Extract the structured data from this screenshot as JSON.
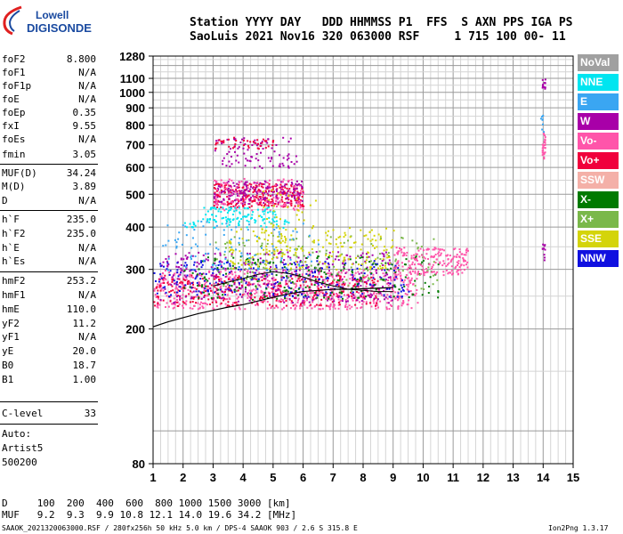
{
  "logo": {
    "brand_top": "Lowell",
    "brand_bottom": "DIGISONDE"
  },
  "header": {
    "row1": "Station YYYY DAY   DDD HHMMSS P1  FFS  S AXN PPS IGA PS",
    "row2": "SaoLuis 2021 Nov16 320 063000 RSF     1 715 100 00- 11"
  },
  "params": [
    {
      "k": "foF2",
      "v": "8.800"
    },
    {
      "k": "foF1",
      "v": "N/A"
    },
    {
      "k": "foF1p",
      "v": "N/A"
    },
    {
      "k": "foE",
      "v": "N/A"
    },
    {
      "k": "foEp",
      "v": "0.35"
    },
    {
      "k": "fxI",
      "v": "9.55"
    },
    {
      "k": "foEs",
      "v": "N/A"
    },
    {
      "k": "fmin",
      "v": "3.05"
    },
    {
      "k": "MUF(D)",
      "v": "34.24"
    },
    {
      "k": "M(D)",
      "v": "3.89"
    },
    {
      "k": "D",
      "v": "N/A"
    },
    {
      "k": "h`F",
      "v": "235.0"
    },
    {
      "k": "h`F2",
      "v": "235.0"
    },
    {
      "k": "h`E",
      "v": "N/A"
    },
    {
      "k": "h`Es",
      "v": "N/A"
    },
    {
      "k": "hmF2",
      "v": "253.2"
    },
    {
      "k": "hmF1",
      "v": "N/A"
    },
    {
      "k": "hmE",
      "v": "110.0"
    },
    {
      "k": "yF2",
      "v": "11.2"
    },
    {
      "k": "yF1",
      "v": "N/A"
    },
    {
      "k": "yE",
      "v": "20.0"
    },
    {
      "k": "B0",
      "v": "18.7"
    },
    {
      "k": "B1",
      "v": "1.00"
    }
  ],
  "clevel": {
    "k": "C-level",
    "v": "33"
  },
  "autoscale": {
    "line1": "Auto:",
    "line2": "Artist5",
    "line3": "500200"
  },
  "legend": [
    {
      "label": "NoVal",
      "color": "#a0a0a0"
    },
    {
      "label": "NNE",
      "color": "#00e5f0"
    },
    {
      "label": "E",
      "color": "#3aa6f2"
    },
    {
      "label": "W",
      "color": "#a800a8"
    },
    {
      "label": "Vo-",
      "color": "#ff55aa"
    },
    {
      "label": "Vo+",
      "color": "#f0003c"
    },
    {
      "label": "SSW",
      "color": "#f4b0a8"
    },
    {
      "label": "X-",
      "color": "#007a00"
    },
    {
      "label": "X+",
      "color": "#7ab84a"
    },
    {
      "label": "SSE",
      "color": "#d4d40a"
    },
    {
      "label": "NNW",
      "color": "#1010e0"
    }
  ],
  "chart_data": {
    "type": "scatter",
    "title": "",
    "xlabel": "",
    "ylabel": "",
    "xlim": [
      1,
      15
    ],
    "ylim": [
      80,
      1280
    ],
    "yscale": "log",
    "x_ticks": [
      "1",
      "2",
      "3",
      "4",
      "5",
      "6",
      "7",
      "8",
      "9",
      "10",
      "11",
      "12",
      "13",
      "14",
      "15"
    ],
    "y_ticks": [
      "80",
      "200",
      "300",
      "400",
      "500",
      "600",
      "700",
      "800",
      "900",
      "1000",
      "1100",
      "1280"
    ],
    "y_tick_values": [
      80,
      200,
      300,
      400,
      500,
      600,
      700,
      800,
      900,
      1000,
      1100,
      1280
    ],
    "grid": true,
    "profile_line": {
      "x": [
        1.0,
        1.5,
        2.0,
        2.5,
        3.0,
        3.5,
        4.0,
        4.5,
        5.0,
        5.5,
        6.0,
        6.5,
        7.0,
        7.5,
        8.0,
        8.5,
        9.0
      ],
      "y": [
        203,
        210,
        216,
        222,
        227,
        232,
        236,
        242,
        248,
        254,
        258,
        260,
        262,
        262,
        263,
        264,
        265
      ]
    },
    "trace_line": {
      "x": [
        3.0,
        3.5,
        4.0,
        4.5,
        5.0,
        5.5,
        6.0,
        6.5,
        7.0,
        7.5,
        8.0,
        8.5,
        9.0
      ],
      "y": [
        268,
        275,
        282,
        290,
        295,
        292,
        285,
        275,
        268,
        262,
        260,
        258,
        258
      ]
    },
    "clusters": [
      {
        "series": "Vo-",
        "x": [
          1.0,
          9.8
        ],
        "y": [
          230,
          300
        ],
        "n": 700
      },
      {
        "series": "Vo+",
        "x": [
          1.0,
          8.5
        ],
        "y": [
          235,
          290
        ],
        "n": 300
      },
      {
        "series": "W",
        "x": [
          1.2,
          9.0
        ],
        "y": [
          240,
          340
        ],
        "n": 350
      },
      {
        "series": "NNW",
        "x": [
          1.0,
          9.5
        ],
        "y": [
          250,
          320
        ],
        "n": 250
      },
      {
        "series": "X-",
        "x": [
          2.0,
          10.5
        ],
        "y": [
          245,
          330
        ],
        "n": 200
      },
      {
        "series": "X+",
        "x": [
          3.0,
          10.5
        ],
        "y": [
          260,
          380
        ],
        "n": 150
      },
      {
        "series": "SSE",
        "x": [
          3.5,
          9.0
        ],
        "y": [
          300,
          400
        ],
        "n": 180
      },
      {
        "series": "E",
        "x": [
          1.3,
          6.5
        ],
        "y": [
          300,
          420
        ],
        "n": 100
      },
      {
        "series": "NNE",
        "x": [
          2.0,
          5.5
        ],
        "y": [
          400,
          430
        ],
        "n": 60
      },
      {
        "series": "Vo-",
        "x": [
          9.0,
          11.5
        ],
        "y": [
          290,
          350
        ],
        "n": 200
      },
      {
        "series": "Vo+",
        "x": [
          3.0,
          6.0
        ],
        "y": [
          460,
          540
        ],
        "n": 260
      },
      {
        "series": "W",
        "x": [
          3.0,
          6.0
        ],
        "y": [
          470,
          550
        ],
        "n": 180
      },
      {
        "series": "Vo-",
        "x": [
          3.0,
          6.0
        ],
        "y": [
          450,
          560
        ],
        "n": 120
      },
      {
        "series": "NNE",
        "x": [
          2.6,
          5.2
        ],
        "y": [
          420,
          460
        ],
        "n": 70
      },
      {
        "series": "W",
        "x": [
          3.0,
          5.8
        ],
        "y": [
          600,
          740
        ],
        "n": 90
      },
      {
        "series": "Vo+",
        "x": [
          3.0,
          5.0
        ],
        "y": [
          680,
          740
        ],
        "n": 40
      },
      {
        "series": "SSE",
        "x": [
          4.5,
          6.5
        ],
        "y": [
          330,
          520
        ],
        "n": 60
      },
      {
        "series": "Vo-",
        "x": [
          13.95,
          14.05
        ],
        "y": [
          640,
          780
        ],
        "n": 30
      },
      {
        "series": "W",
        "x": [
          13.95,
          14.05
        ],
        "y": [
          1030,
          1100
        ],
        "n": 12
      },
      {
        "series": "W",
        "x": [
          13.95,
          14.05
        ],
        "y": [
          320,
          360
        ],
        "n": 10
      },
      {
        "series": "E",
        "x": [
          13.9,
          14.0
        ],
        "y": [
          760,
          860
        ],
        "n": 8
      }
    ]
  },
  "footer": {
    "d_row": "D     100  200  400  600  800 1000 1500 3000 [km]",
    "muf_row": "MUF   9.2  9.3  9.9 10.8 12.1 14.0 19.6 34.2 [MHz]",
    "file_info": "SAAOK_2021320063000.RSF / 280fx256h 50 kHz 5.0 km / DPS-4 SAAOK 903 / 2.6 S 315.8 E",
    "version": "Ion2Png 1.3.17"
  }
}
